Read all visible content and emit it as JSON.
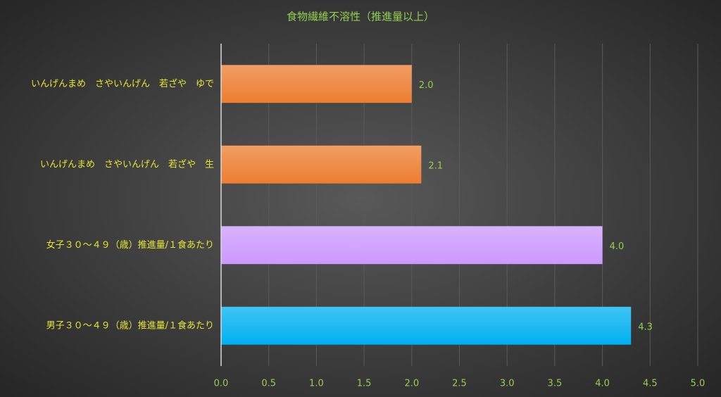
{
  "chart_data": {
    "type": "bar",
    "orientation": "horizontal",
    "title": "食物繊維不溶性（推進量以上）",
    "categories": [
      "いんげんまめ　さやいんげん　若ざや　ゆで",
      "いんげんまめ　さやいんげん　若ざや　生",
      "女子３０～４９（歳）推進量/１食あたり",
      "男子３０～４９（歳）推進量/１食あたり"
    ],
    "values": [
      2.0,
      2.1,
      4.0,
      4.3
    ],
    "value_labels": [
      "2.0",
      "2.1",
      "4.0",
      "4.3"
    ],
    "colors": [
      "#ed7d31",
      "#ed7d31",
      "#cc99ff",
      "#00b0f0"
    ],
    "xlim": [
      0,
      5
    ],
    "xticks": [
      {
        "value": 0,
        "label": "0.0"
      },
      0.5,
      {
        "value": 1,
        "label": "1.0"
      },
      1.5,
      {
        "value": 2,
        "label": "2.0"
      },
      2.5,
      {
        "value": 3,
        "label": "3.0"
      },
      3.5,
      {
        "value": 4,
        "label": "4.0"
      },
      4.5,
      {
        "value": 5,
        "label": "5.0"
      }
    ],
    "grid": true
  }
}
